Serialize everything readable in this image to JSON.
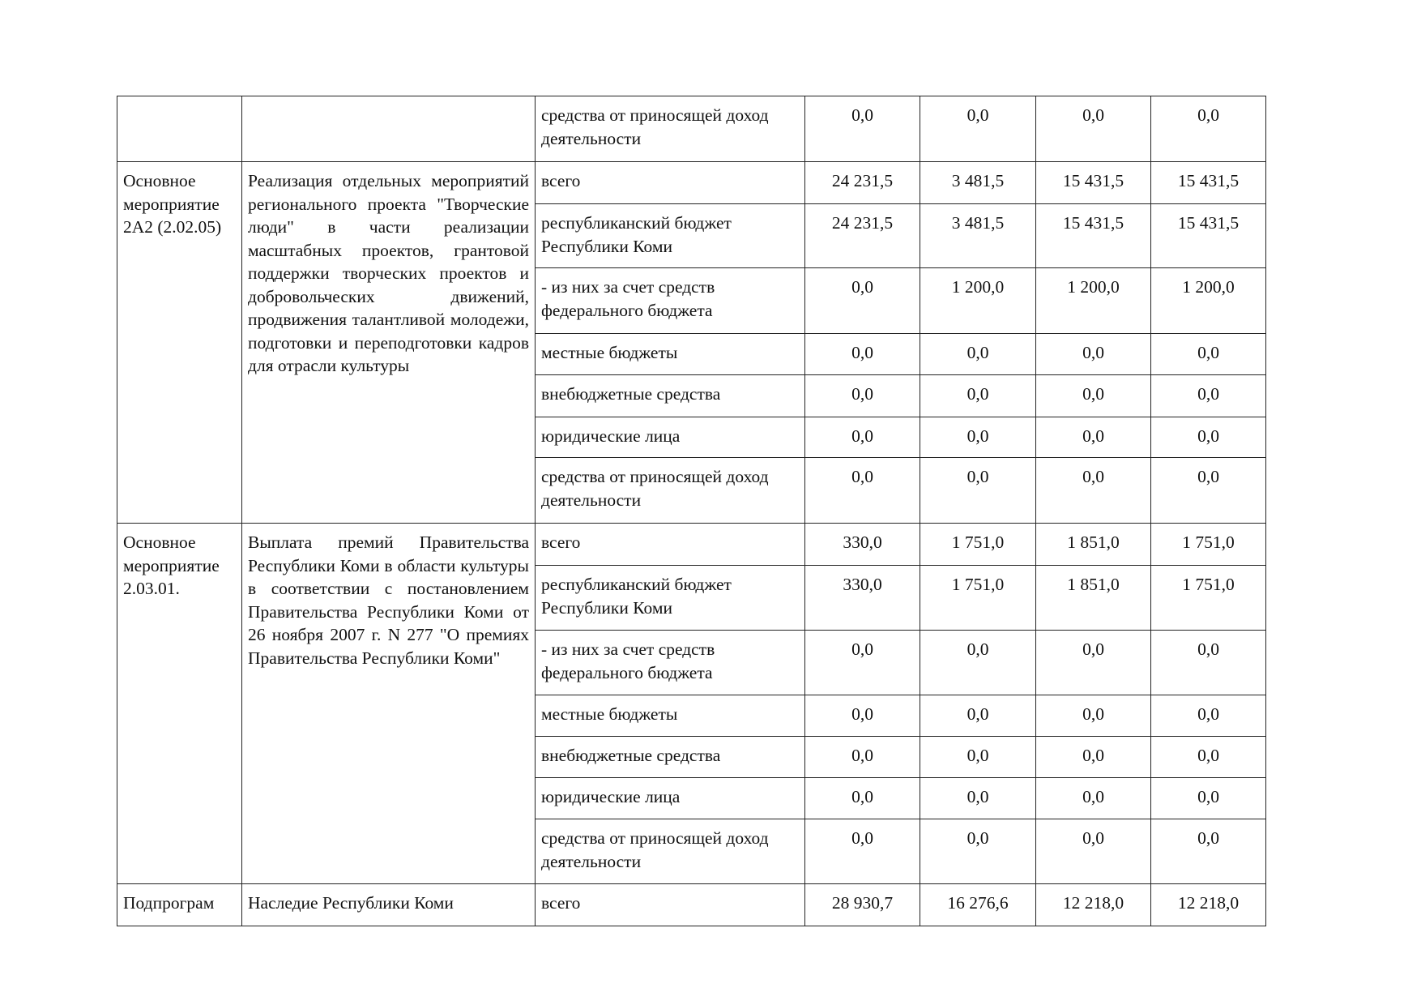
{
  "table": {
    "groups": [
      {
        "code": "",
        "name": "",
        "rows": [
          {
            "source": "средства от приносящей доход деятельности",
            "values": [
              "0,0",
              "0,0",
              "0,0",
              "0,0"
            ]
          }
        ]
      },
      {
        "code": "Основное мероприятие 2А2 (2.02.05)",
        "name": "Реализация отдельных мероприятий регионального проекта \"Творческие люди\" в части реализации масштабных проектов, грантовой поддержки творческих проектов и добровольческих движений, продвижения талантливой молодежи, подготовки и переподготовки кадров для отрасли культуры",
        "rows": [
          {
            "source": "всего",
            "values": [
              "24 231,5",
              "3 481,5",
              "15 431,5",
              "15 431,5"
            ]
          },
          {
            "source": "республиканский бюджет Республики Коми",
            "values": [
              "24 231,5",
              "3 481,5",
              "15 431,5",
              "15 431,5"
            ]
          },
          {
            "source": "- из них за счет средств федерального бюджета",
            "values": [
              "0,0",
              "1 200,0",
              "1 200,0",
              "1 200,0"
            ]
          },
          {
            "source": "местные бюджеты",
            "values": [
              "0,0",
              "0,0",
              "0,0",
              "0,0"
            ]
          },
          {
            "source": "внебюджетные средства",
            "values": [
              "0,0",
              "0,0",
              "0,0",
              "0,0"
            ]
          },
          {
            "source": "юридические лица",
            "values": [
              "0,0",
              "0,0",
              "0,0",
              "0,0"
            ]
          },
          {
            "source": "средства от приносящей доход деятельности",
            "values": [
              "0,0",
              "0,0",
              "0,0",
              "0,0"
            ]
          }
        ]
      },
      {
        "code": "Основное мероприятие 2.03.01.",
        "name": "Выплата премий Правительства Республики Коми в области культуры в соответствии с постановлением Правительства Республики Коми от 26 ноября 2007 г. N 277 \"О премиях Правительства Республики Коми\"",
        "rows": [
          {
            "source": "всего",
            "values": [
              "330,0",
              "1 751,0",
              "1 851,0",
              "1 751,0"
            ]
          },
          {
            "source": "республиканский бюджет Республики Коми",
            "values": [
              "330,0",
              "1 751,0",
              "1 851,0",
              "1 751,0"
            ]
          },
          {
            "source": "- из них за счет средств федерального бюджета",
            "values": [
              "0,0",
              "0,0",
              "0,0",
              "0,0"
            ]
          },
          {
            "source": "местные бюджеты",
            "values": [
              "0,0",
              "0,0",
              "0,0",
              "0,0"
            ]
          },
          {
            "source": "внебюджетные средства",
            "values": [
              "0,0",
              "0,0",
              "0,0",
              "0,0"
            ]
          },
          {
            "source": "юридические лица",
            "values": [
              "0,0",
              "0,0",
              "0,0",
              "0,0"
            ]
          },
          {
            "source": "средства от приносящей доход деятельности",
            "values": [
              "0,0",
              "0,0",
              "0,0",
              "0,0"
            ]
          }
        ]
      },
      {
        "code": "Подпрограм",
        "name": "Наследие Республики Коми",
        "rows": [
          {
            "source": "всего",
            "values": [
              "28 930,7",
              "16 276,6",
              "12 218,0",
              "12 218,0"
            ]
          }
        ]
      }
    ]
  }
}
